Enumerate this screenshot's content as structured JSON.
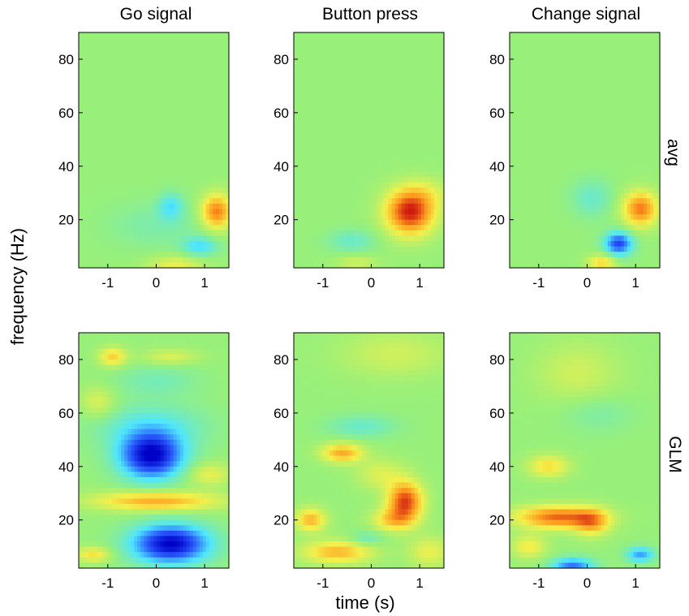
{
  "figure": {
    "ylabel": "frequency (Hz)",
    "xlabel": "time (s)",
    "columns": [
      "Go signal",
      "Button press",
      "Change signal"
    ],
    "rows": [
      "avg",
      "GLM"
    ]
  },
  "colors": {
    "background": "#98f07a",
    "colormap": [
      "#0000c8",
      "#2a5cff",
      "#4ee6ff",
      "#98f07a",
      "#f4f04a",
      "#ff9a1e",
      "#d01a10"
    ]
  },
  "chart_data": [
    {
      "type": "heatmap",
      "id": "avg-go",
      "column": "Go signal",
      "row": "avg",
      "xlim": [
        -1.6,
        1.5
      ],
      "ylim": [
        2,
        90
      ],
      "xticks": [
        -1,
        0,
        1
      ],
      "xticklabels": [
        "-1",
        "0",
        "1"
      ],
      "yticks": [
        20,
        40,
        60,
        80
      ],
      "yticklabels": [
        "20",
        "40",
        "60",
        "80"
      ],
      "xlabel": "time (s)",
      "ylabel": "frequency (Hz)",
      "blobs": [
        {
          "t": 1.25,
          "f": 23,
          "st": 0.22,
          "sf": 4.5,
          "v": 0.75
        },
        {
          "t": 0.3,
          "f": 25,
          "st": 0.18,
          "sf": 3.5,
          "v": -0.3
        },
        {
          "t": 0.9,
          "f": 10,
          "st": 0.25,
          "sf": 2.5,
          "v": -0.35
        },
        {
          "t": 0.4,
          "f": 3,
          "st": 0.4,
          "sf": 2.5,
          "v": 0.3
        },
        {
          "t": 0.0,
          "f": 18,
          "st": 0.7,
          "sf": 6,
          "v": -0.12
        }
      ]
    },
    {
      "type": "heatmap",
      "id": "avg-button",
      "column": "Button press",
      "row": "avg",
      "xlim": [
        -1.6,
        1.5
      ],
      "ylim": [
        2,
        90
      ],
      "xticks": [
        -1,
        0,
        1
      ],
      "xticklabels": [
        "-1",
        "0",
        "1"
      ],
      "yticks": [
        20,
        40,
        60,
        80
      ],
      "yticklabels": [
        "20",
        "40",
        "60",
        "80"
      ],
      "xlabel": "time (s)",
      "ylabel": "frequency (Hz)",
      "blobs": [
        {
          "t": 0.8,
          "f": 23,
          "st": 0.35,
          "sf": 6,
          "v": 1.0
        },
        {
          "t": -0.4,
          "f": 12,
          "st": 0.35,
          "sf": 3,
          "v": -0.2
        },
        {
          "t": -0.3,
          "f": 4,
          "st": 0.3,
          "sf": 2,
          "v": 0.2
        },
        {
          "t": 1.2,
          "f": 30,
          "st": 0.3,
          "sf": 4,
          "v": 0.15
        }
      ]
    },
    {
      "type": "heatmap",
      "id": "avg-change",
      "column": "Change signal",
      "row": "avg",
      "xlim": [
        -1.6,
        1.5
      ],
      "ylim": [
        2,
        90
      ],
      "xticks": [
        -1,
        0,
        1
      ],
      "xticklabels": [
        "-1",
        "0",
        "1"
      ],
      "yticks": [
        20,
        40,
        60,
        80
      ],
      "yticklabels": [
        "20",
        "40",
        "60",
        "80"
      ],
      "xlabel": "time (s)",
      "ylabel": "frequency (Hz)",
      "blobs": [
        {
          "t": 1.1,
          "f": 24,
          "st": 0.25,
          "sf": 4.5,
          "v": 0.75
        },
        {
          "t": 0.65,
          "f": 11,
          "st": 0.2,
          "sf": 3,
          "v": -0.75
        },
        {
          "t": 0.1,
          "f": 28,
          "st": 0.3,
          "sf": 5,
          "v": -0.2
        },
        {
          "t": 0.3,
          "f": 4,
          "st": 0.2,
          "sf": 2,
          "v": 0.45
        }
      ]
    },
    {
      "type": "heatmap",
      "id": "glm-go",
      "column": "Go signal",
      "row": "GLM",
      "xlim": [
        -1.6,
        1.5
      ],
      "ylim": [
        2,
        90
      ],
      "xticks": [
        -1,
        0,
        1
      ],
      "xticklabels": [
        "-1",
        "0",
        "1"
      ],
      "yticks": [
        20,
        40,
        60,
        80
      ],
      "yticklabels": [
        "20",
        "40",
        "60",
        "80"
      ],
      "xlabel": "time (s)",
      "ylabel": "frequency (Hz)",
      "blobs": [
        {
          "t": -0.1,
          "f": 44,
          "st": 0.45,
          "sf": 6,
          "v": -1.0
        },
        {
          "t": 0.3,
          "f": 11,
          "st": 0.55,
          "sf": 5,
          "v": -1.0
        },
        {
          "t": 0.0,
          "f": 27,
          "st": 0.9,
          "sf": 2.5,
          "v": 0.6
        },
        {
          "t": -0.9,
          "f": 81,
          "st": 0.2,
          "sf": 2.5,
          "v": 0.45
        },
        {
          "t": 0.3,
          "f": 81,
          "st": 0.4,
          "sf": 2,
          "v": 0.25
        },
        {
          "t": -0.1,
          "f": 55,
          "st": 0.8,
          "sf": 6,
          "v": -0.25
        },
        {
          "t": 0.0,
          "f": 72,
          "st": 0.6,
          "sf": 4,
          "v": -0.15
        },
        {
          "t": -1.3,
          "f": 7,
          "st": 0.25,
          "sf": 2,
          "v": 0.4
        },
        {
          "t": -1.2,
          "f": 64,
          "st": 0.25,
          "sf": 4,
          "v": 0.25
        },
        {
          "t": 1.1,
          "f": 37,
          "st": 0.3,
          "sf": 3,
          "v": 0.3
        }
      ]
    },
    {
      "type": "heatmap",
      "id": "glm-button",
      "column": "Button press",
      "row": "GLM",
      "xlim": [
        -1.6,
        1.5
      ],
      "ylim": [
        2,
        90
      ],
      "xticks": [
        -1,
        0,
        1
      ],
      "xticklabels": [
        "-1",
        "0",
        "1"
      ],
      "yticks": [
        20,
        40,
        60,
        80
      ],
      "yticklabels": [
        "20",
        "40",
        "60",
        "80"
      ],
      "xlabel": "time (s)",
      "ylabel": "frequency (Hz)",
      "blobs": [
        {
          "t": 0.7,
          "f": 27,
          "st": 0.25,
          "sf": 5,
          "v": 0.9
        },
        {
          "t": 0.45,
          "f": 20,
          "st": 0.3,
          "sf": 3,
          "v": 0.45
        },
        {
          "t": -1.25,
          "f": 20,
          "st": 0.22,
          "sf": 3,
          "v": 0.55
        },
        {
          "t": -0.7,
          "f": 8,
          "st": 0.5,
          "sf": 3,
          "v": 0.55
        },
        {
          "t": -0.6,
          "f": 45,
          "st": 0.3,
          "sf": 2.5,
          "v": 0.6
        },
        {
          "t": -0.2,
          "f": 55,
          "st": 0.5,
          "sf": 3,
          "v": -0.2
        },
        {
          "t": 0.2,
          "f": 37,
          "st": 0.35,
          "sf": 4,
          "v": 0.25
        },
        {
          "t": 0.5,
          "f": 82,
          "st": 0.8,
          "sf": 6,
          "v": 0.2
        },
        {
          "t": -0.1,
          "f": 13,
          "st": 0.25,
          "sf": 2,
          "v": -0.2
        },
        {
          "t": 1.2,
          "f": 8,
          "st": 0.3,
          "sf": 4,
          "v": 0.3
        }
      ]
    },
    {
      "type": "heatmap",
      "id": "glm-change",
      "column": "Change signal",
      "row": "GLM",
      "xlim": [
        -1.6,
        1.5
      ],
      "ylim": [
        2,
        90
      ],
      "xticks": [
        -1,
        0,
        1
      ],
      "xticklabels": [
        "-1",
        "0",
        "1"
      ],
      "yticks": [
        20,
        40,
        60,
        80
      ],
      "yticklabels": [
        "20",
        "40",
        "60",
        "80"
      ],
      "xlabel": "time (s)",
      "ylabel": "frequency (Hz)",
      "blobs": [
        {
          "t": -0.6,
          "f": 21,
          "st": 0.6,
          "sf": 3,
          "v": 0.8
        },
        {
          "t": 0.1,
          "f": 19,
          "st": 0.25,
          "sf": 3.5,
          "v": 0.5
        },
        {
          "t": -0.8,
          "f": 40,
          "st": 0.3,
          "sf": 3,
          "v": 0.4
        },
        {
          "t": -0.2,
          "f": 75,
          "st": 0.6,
          "sf": 8,
          "v": 0.2
        },
        {
          "t": 0.2,
          "f": 60,
          "st": 0.5,
          "sf": 5,
          "v": -0.12
        },
        {
          "t": -0.3,
          "f": 3,
          "st": 0.3,
          "sf": 2,
          "v": -0.6
        },
        {
          "t": 1.1,
          "f": 7,
          "st": 0.2,
          "sf": 2,
          "v": -0.5
        },
        {
          "t": -1.2,
          "f": 10,
          "st": 0.25,
          "sf": 3,
          "v": 0.35
        }
      ]
    }
  ]
}
